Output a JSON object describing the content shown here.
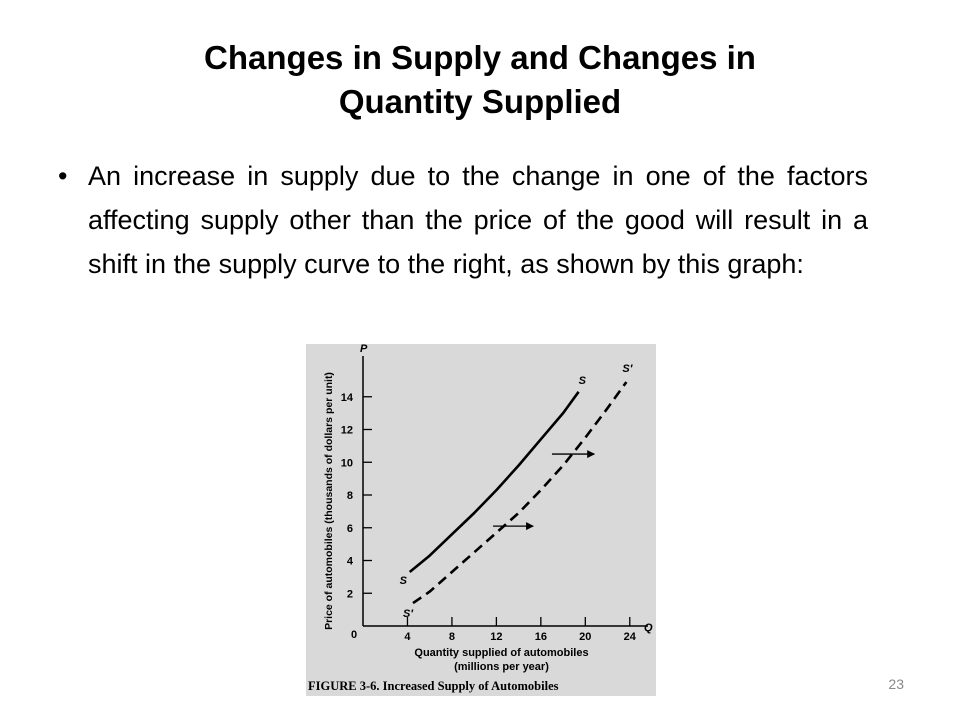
{
  "slide": {
    "title_line1": "Changes in Supply and Changes in",
    "title_line2": "Quantity Supplied",
    "bullet": "An increase in supply due to the change in one of the factors affecting supply other than the price of the good will result in a shift in the supply curve to the right, as shown by this graph:",
    "page_number": "23"
  },
  "chart_data": {
    "type": "line",
    "caption": "FIGURE 3-6. Increased Supply of Automobiles",
    "xlabel_line1": "Quantity supplied of automobiles",
    "xlabel_line2": "(millions per year)",
    "ylabel": "Price of automobiles (thousands of dollars per unit)",
    "x_axis_letter": "Q",
    "y_axis_letter": "P",
    "origin_label": "0",
    "xlim": [
      0,
      26
    ],
    "ylim": [
      0,
      16
    ],
    "x_ticks": [
      4,
      8,
      12,
      16,
      20,
      24
    ],
    "y_ticks": [
      2,
      4,
      6,
      8,
      10,
      12,
      14
    ],
    "series": [
      {
        "name": "S",
        "end_label": "S",
        "style": "solid",
        "points": [
          [
            4.2,
            3.3
          ],
          [
            6,
            4.3
          ],
          [
            8,
            5.6
          ],
          [
            10,
            6.9
          ],
          [
            12,
            8.3
          ],
          [
            14,
            9.8
          ],
          [
            16,
            11.4
          ],
          [
            18,
            13.0
          ],
          [
            19.4,
            14.3
          ]
        ]
      },
      {
        "name": "S′",
        "end_label": "S′",
        "style": "dashed",
        "points": [
          [
            4.5,
            1.4
          ],
          [
            6,
            2.1
          ],
          [
            8,
            3.3
          ],
          [
            10,
            4.5
          ],
          [
            12,
            5.7
          ],
          [
            14,
            6.9
          ],
          [
            16,
            8.3
          ],
          [
            18,
            9.8
          ],
          [
            20,
            11.5
          ],
          [
            22,
            13.3
          ],
          [
            23.7,
            14.9
          ]
        ]
      }
    ],
    "arrows": [
      {
        "from": [
          11.7,
          6.1
        ],
        "to": [
          15.3,
          6.1
        ]
      },
      {
        "from": [
          17.0,
          10.5
        ],
        "to": [
          20.8,
          10.5
        ]
      }
    ],
    "colors": {
      "background": "#d9d9d9",
      "ink": "#000000"
    }
  }
}
